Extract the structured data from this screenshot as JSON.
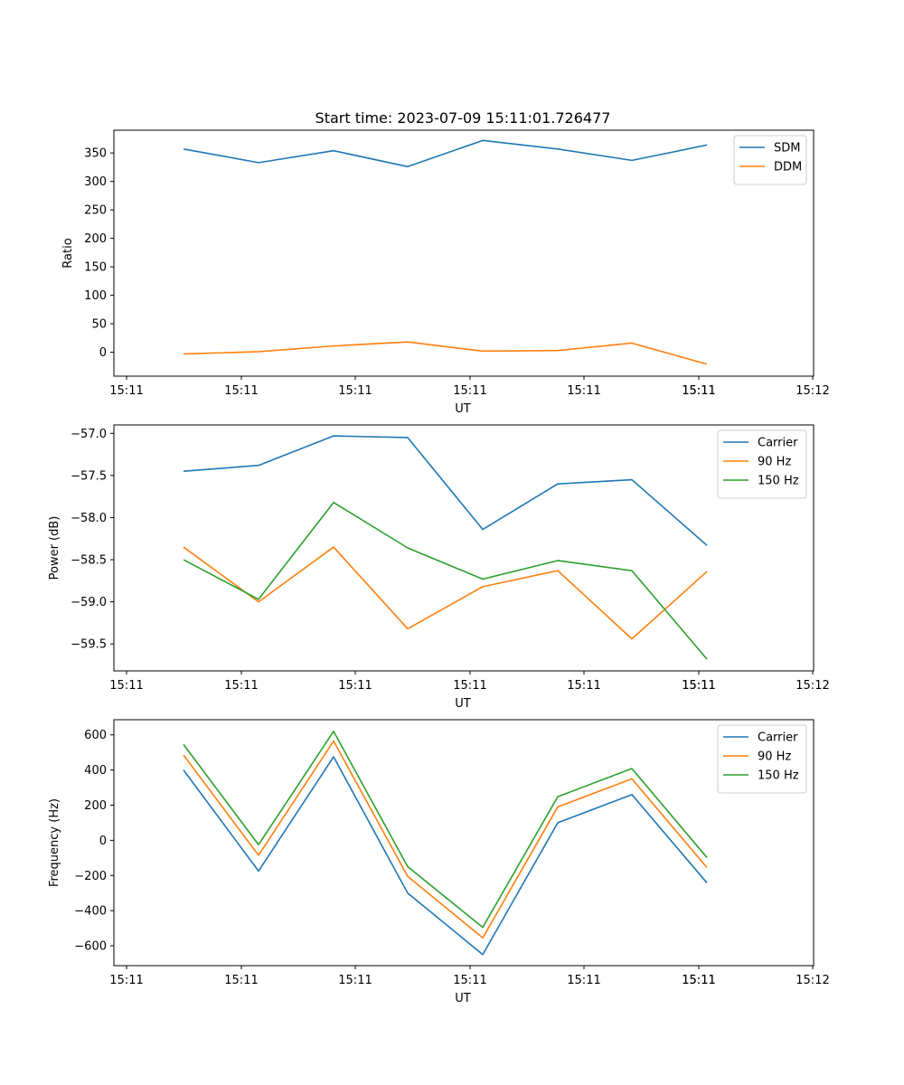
{
  "figure_title": "Start time: 2023-07-09 15:11:01.726477",
  "colors": {
    "blue": "#1f77b4",
    "orange": "#ff7f0e",
    "green": "#2ca02c",
    "axis": "#000000",
    "legend_border": "#cccccc"
  },
  "chart_data": [
    {
      "type": "line",
      "title": "Start time: 2023-07-09 15:11:01.726477",
      "xlabel": "UT",
      "ylabel": "Ratio",
      "x_tick_labels": [
        "15:11",
        "15:11",
        "15:11",
        "15:11",
        "15:11",
        "15:11",
        "15:11",
        "15:12"
      ],
      "ylim": [
        -42,
        390
      ],
      "y_ticks": [
        0,
        50,
        100,
        150,
        200,
        250,
        300,
        350
      ],
      "legend_position": "top-right",
      "series": [
        {
          "name": "SDM",
          "color": "#1f77b4",
          "values": [
            357,
            333,
            354,
            326,
            372,
            357,
            337,
            364
          ]
        },
        {
          "name": "DDM",
          "color": "#ff7f0e",
          "values": [
            -3,
            1,
            11,
            18,
            2,
            3,
            16,
            -21
          ]
        }
      ]
    },
    {
      "type": "line",
      "title": "",
      "xlabel": "UT",
      "ylabel": "Power (dB)",
      "x_tick_labels": [
        "15:11",
        "15:11",
        "15:11",
        "15:11",
        "15:11",
        "15:11",
        "15:11",
        "15:12"
      ],
      "ylim": [
        -59.82,
        -56.9
      ],
      "y_ticks": [
        -57.0,
        -57.5,
        -58.0,
        -58.5,
        -59.0,
        -59.5
      ],
      "legend_position": "top-right",
      "series": [
        {
          "name": "Carrier",
          "color": "#1f77b4",
          "values": [
            -57.45,
            -57.38,
            -57.03,
            -57.05,
            -58.14,
            -57.6,
            -57.55,
            -58.33
          ]
        },
        {
          "name": "90 Hz",
          "color": "#ff7f0e",
          "values": [
            -58.35,
            -59.0,
            -58.35,
            -59.32,
            -58.82,
            -58.63,
            -59.44,
            -58.64
          ]
        },
        {
          "name": "150 Hz",
          "color": "#2ca02c",
          "values": [
            -58.5,
            -58.97,
            -57.82,
            -58.36,
            -58.73,
            -58.51,
            -58.63,
            -59.68
          ]
        }
      ]
    },
    {
      "type": "line",
      "title": "",
      "xlabel": "UT",
      "ylabel": "Frequency (Hz)",
      "x_tick_labels": [
        "15:11",
        "15:11",
        "15:11",
        "15:11",
        "15:11",
        "15:11",
        "15:11",
        "15:12"
      ],
      "ylim": [
        -713,
        686
      ],
      "y_ticks": [
        -600,
        -400,
        -200,
        0,
        200,
        400,
        600
      ],
      "legend_position": "top-right",
      "series": [
        {
          "name": "Carrier",
          "color": "#1f77b4",
          "values": [
            400,
            -175,
            475,
            -300,
            -650,
            100,
            260,
            -242
          ]
        },
        {
          "name": "90 Hz",
          "color": "#ff7f0e",
          "values": [
            485,
            -85,
            565,
            -205,
            -555,
            190,
            350,
            -155
          ]
        },
        {
          "name": "150 Hz",
          "color": "#2ca02c",
          "values": [
            545,
            -25,
            620,
            -150,
            -495,
            248,
            408,
            -98
          ]
        }
      ]
    }
  ]
}
